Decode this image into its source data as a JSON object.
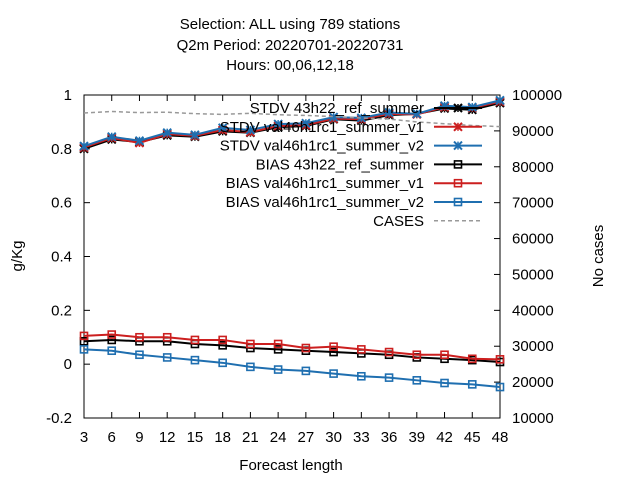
{
  "title_lines": [
    "Selection: ALL using    789 stations",
    "Q2m    Period: 20220701-20220731",
    "Hours:  00,06,12,18"
  ],
  "chart_data": {
    "type": "line",
    "xlabel": "Forecast length",
    "ylabel": "g/Kg",
    "y2label": "No cases",
    "x": [
      3,
      6,
      9,
      12,
      15,
      18,
      21,
      24,
      27,
      30,
      33,
      36,
      39,
      42,
      45,
      48
    ],
    "xlim": [
      3,
      48
    ],
    "ylim": [
      -0.2,
      1
    ],
    "y2lim": [
      10000,
      100000
    ],
    "y_ticks": [
      "-0.2",
      "0",
      "0.2",
      "0.4",
      "0.6",
      "0.8",
      "1"
    ],
    "y2_ticks": [
      "10000",
      "20000",
      "30000",
      "40000",
      "50000",
      "60000",
      "70000",
      "80000",
      "90000",
      "100000"
    ],
    "legend_position": "top-right",
    "grid": false,
    "series": [
      {
        "name": "STDV 43h22_ref_summer",
        "axis": "y",
        "color": "#000000",
        "marker": "x",
        "dash": "",
        "values": [
          0.8,
          0.835,
          0.825,
          0.85,
          0.845,
          0.865,
          0.86,
          0.88,
          0.885,
          0.91,
          0.905,
          0.925,
          0.93,
          0.95,
          0.945,
          0.97
        ]
      },
      {
        "name": "STDV val46h1rc1_summer_v1",
        "axis": "y",
        "color": "#cc1f1f",
        "marker": "x",
        "dash": "",
        "values": [
          0.805,
          0.84,
          0.822,
          0.855,
          0.848,
          0.87,
          0.862,
          0.885,
          0.888,
          0.912,
          0.91,
          0.93,
          0.928,
          0.955,
          0.952,
          0.975
        ]
      },
      {
        "name": "STDV val46h1rc1_summer_v2",
        "axis": "y",
        "color": "#1f6fb0",
        "marker": "x",
        "dash": "",
        "values": [
          0.81,
          0.845,
          0.83,
          0.86,
          0.852,
          0.878,
          0.87,
          0.892,
          0.895,
          0.918,
          0.915,
          0.935,
          0.93,
          0.96,
          0.955,
          0.98
        ]
      },
      {
        "name": "BIAS 43h22_ref_summer",
        "axis": "y",
        "color": "#000000",
        "marker": "square",
        "dash": "",
        "values": [
          0.085,
          0.09,
          0.085,
          0.085,
          0.075,
          0.07,
          0.06,
          0.055,
          0.05,
          0.045,
          0.04,
          0.035,
          0.025,
          0.02,
          0.015,
          0.008
        ]
      },
      {
        "name": "BIAS val46h1rc1_summer_v1",
        "axis": "y",
        "color": "#cc1f1f",
        "marker": "square",
        "dash": "",
        "values": [
          0.105,
          0.11,
          0.1,
          0.1,
          0.09,
          0.09,
          0.075,
          0.075,
          0.06,
          0.065,
          0.055,
          0.045,
          0.035,
          0.035,
          0.02,
          0.018
        ]
      },
      {
        "name": "BIAS val46h1rc1_summer_v2",
        "axis": "y",
        "color": "#1f6fb0",
        "marker": "square",
        "dash": "",
        "values": [
          0.055,
          0.05,
          0.035,
          0.025,
          0.015,
          0.005,
          -0.01,
          -0.02,
          -0.025,
          -0.035,
          -0.045,
          -0.05,
          -0.06,
          -0.07,
          -0.075,
          -0.085
        ]
      },
      {
        "name": "CASES",
        "axis": "y2",
        "color": "#999999",
        "marker": "none",
        "dash": "4,3",
        "values": [
          95000,
          95400,
          95100,
          95200,
          94800,
          94600,
          94900,
          94500,
          94300,
          94000,
          93600,
          93300,
          92500,
          92000,
          91500,
          91200
        ]
      }
    ]
  }
}
